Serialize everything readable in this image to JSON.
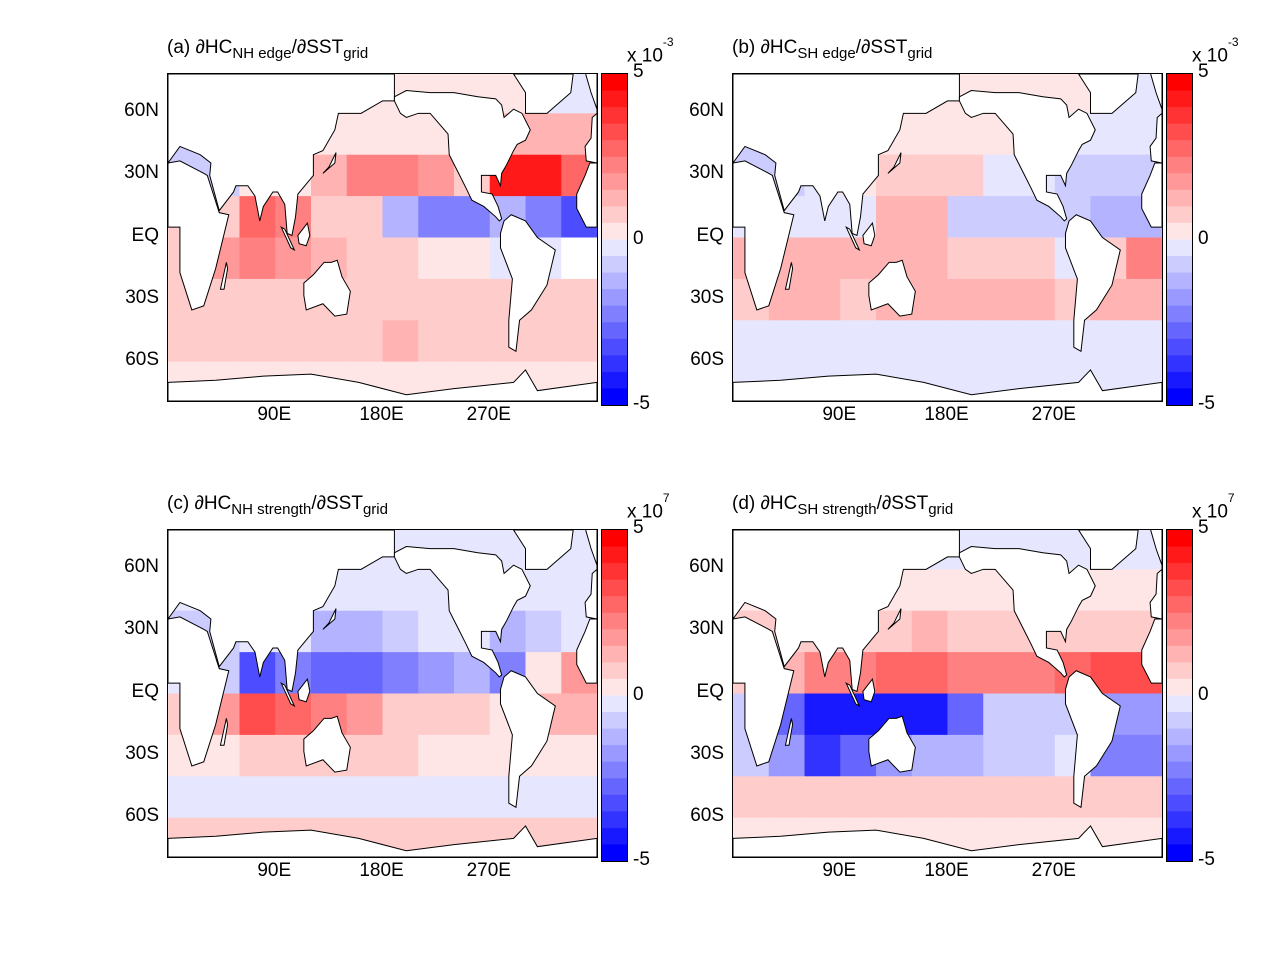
{
  "chart_data": [
    {
      "type": "heatmap",
      "panel_label": "(a)",
      "title_main": "∂HC",
      "title_sub": "NH edge",
      "title_den": "/∂SST",
      "title_den_sub": "grid",
      "colorbar": {
        "min": -5,
        "max": 5,
        "mid": 0,
        "min_label": "-5",
        "mid_label": "0",
        "max_label": "5",
        "multiplier_base": "x 10",
        "multiplier_exp": "-3"
      },
      "lat_bins": [
        70,
        50,
        30,
        10,
        -10,
        -30,
        -50,
        -70
      ],
      "lon_bins": [
        15,
        45,
        75,
        105,
        135,
        165,
        195,
        225,
        255,
        285,
        315,
        345
      ],
      "values": [
        [
          0.3,
          0.3,
          0.3,
          0.3,
          0.3,
          0.3,
          0.3,
          0.3,
          0.3,
          0.3,
          -0.5,
          -0.5
        ],
        [
          -1,
          0.3,
          0.3,
          0.3,
          0.5,
          0.5,
          0.5,
          0.5,
          0.3,
          1.2,
          1.5,
          1.2
        ],
        [
          -1,
          -1,
          0.5,
          0.5,
          1.5,
          2.5,
          2.5,
          2.0,
          1.0,
          4.5,
          4.5,
          3.0
        ],
        [
          1,
          1,
          3,
          2.5,
          1,
          1,
          -1.5,
          -2.5,
          -2.5,
          -1.5,
          -2.5,
          -3.5
        ],
        [
          1,
          2,
          2.5,
          2,
          1.5,
          0.8,
          0.8,
          0.5,
          0.5,
          -0.5,
          -0.5,
          0
        ],
        [
          0.8,
          0.8,
          0.8,
          0.8,
          0.8,
          1,
          1,
          1,
          0.8,
          0.8,
          1,
          0.8
        ],
        [
          0.8,
          0.8,
          0.8,
          0.8,
          0.8,
          0.8,
          1.2,
          0.8,
          0.8,
          0.8,
          0.8,
          0.8
        ],
        [
          0.5,
          0.5,
          0.5,
          0.5,
          0.5,
          0.5,
          0.5,
          0.5,
          0.5,
          0.5,
          0.5,
          0.5
        ]
      ]
    },
    {
      "type": "heatmap",
      "panel_label": "(b)",
      "title_main": "∂HC",
      "title_sub": "SH edge",
      "title_den": "/∂SST",
      "title_den_sub": "grid",
      "colorbar": {
        "min": -5,
        "max": 5,
        "mid": 0,
        "min_label": "-5",
        "mid_label": "0",
        "max_label": "5",
        "multiplier_base": "x 10",
        "multiplier_exp": "-3"
      },
      "lat_bins": [
        70,
        50,
        30,
        10,
        -10,
        -30,
        -50,
        -70
      ],
      "lon_bins": [
        15,
        45,
        75,
        105,
        135,
        165,
        195,
        225,
        255,
        285,
        315,
        345
      ],
      "values": [
        [
          0.3,
          0.3,
          0.3,
          0.3,
          0.3,
          0.3,
          0.3,
          0.3,
          0.3,
          0.3,
          -0.5,
          -0.5
        ],
        [
          -1,
          0.3,
          0.3,
          0.3,
          0.5,
          0.5,
          0.5,
          0.5,
          0.3,
          -0.5,
          -0.5,
          -0.5
        ],
        [
          -1,
          -1,
          -0.5,
          0.3,
          0.8,
          1.0,
          1.0,
          -0.5,
          -0.5,
          -1,
          -1,
          -1
        ],
        [
          -0.5,
          -0.5,
          -0.5,
          -0.5,
          1.5,
          1.5,
          -0.8,
          -0.8,
          -0.8,
          -1.0,
          -1.5,
          -1.5
        ],
        [
          1.2,
          1.5,
          1.5,
          1.2,
          1.5,
          1.5,
          1.0,
          0.8,
          0.8,
          -0.5,
          1.0,
          2.5
        ],
        [
          1.0,
          1.2,
          1.2,
          1.0,
          1.2,
          1.2,
          1.2,
          1.5,
          1.2,
          0.8,
          1.2,
          1.5
        ],
        [
          -0.5,
          -0.5,
          -0.5,
          -0.5,
          -0.5,
          -0.5,
          -0.5,
          -0.5,
          -0.5,
          -0.5,
          -0.5,
          -0.5
        ],
        [
          -0.5,
          -0.5,
          -0.5,
          -0.5,
          -0.5,
          -0.5,
          -0.5,
          -0.5,
          -0.5,
          -0.5,
          -0.5,
          -0.5
        ]
      ]
    },
    {
      "type": "heatmap",
      "panel_label": "(c)",
      "title_main": "∂HC",
      "title_sub": "NH strength",
      "title_den": "/∂SST",
      "title_den_sub": "grid",
      "colorbar": {
        "min": -5,
        "max": 5,
        "mid": 0,
        "min_label": "-5",
        "mid_label": "0",
        "max_label": "5",
        "multiplier_base": "x 10",
        "multiplier_exp": "7"
      },
      "lat_bins": [
        70,
        50,
        30,
        10,
        -10,
        -30,
        -50,
        -70
      ],
      "lon_bins": [
        15,
        45,
        75,
        105,
        135,
        165,
        195,
        225,
        255,
        285,
        315,
        345
      ],
      "values": [
        [
          -0.3,
          -0.3,
          -0.3,
          -0.3,
          -0.3,
          -0.3,
          -0.3,
          -0.3,
          -0.3,
          -0.3,
          -0.3,
          -0.3
        ],
        [
          -0.5,
          -0.5,
          -0.5,
          -0.5,
          -0.5,
          -0.5,
          -0.5,
          -0.5,
          -0.5,
          -0.5,
          -0.5,
          -0.5
        ],
        [
          -1,
          -1,
          -0.5,
          -0.5,
          -1.5,
          -1.5,
          -1.0,
          -0.5,
          -0.5,
          -1.5,
          -1.0,
          -0.5
        ],
        [
          -0.5,
          -1,
          -3.5,
          -2.5,
          -3,
          -3,
          -2.5,
          -2.0,
          -1.5,
          -2.5,
          0.5,
          2
        ],
        [
          1,
          2,
          3.5,
          3,
          2.5,
          2,
          1.0,
          0.8,
          0.8,
          0.5,
          1.5,
          1.5
        ],
        [
          0.5,
          0.5,
          0.8,
          0.8,
          0.8,
          1.0,
          0.8,
          0.5,
          0.5,
          0.5,
          0.5,
          0.5
        ],
        [
          -0.5,
          -0.5,
          -0.5,
          -0.5,
          -0.5,
          -0.5,
          -0.5,
          -0.5,
          -0.5,
          -0.5,
          -0.5,
          -0.5
        ],
        [
          0.8,
          0.8,
          0.8,
          0.8,
          0.8,
          0.8,
          0.8,
          0.8,
          0.8,
          0.8,
          0.8,
          0.8
        ]
      ]
    },
    {
      "type": "heatmap",
      "panel_label": "(d)",
      "title_main": "∂HC",
      "title_sub": "SH strength",
      "title_den": "/∂SST",
      "title_den_sub": "grid",
      "colorbar": {
        "min": -5,
        "max": 5,
        "mid": 0,
        "min_label": "-5",
        "mid_label": "0",
        "max_label": "5",
        "multiplier_base": "x 10",
        "multiplier_exp": "7"
      },
      "lat_bins": [
        70,
        50,
        30,
        10,
        -10,
        -30,
        -50,
        -70
      ],
      "lon_bins": [
        15,
        45,
        75,
        105,
        135,
        165,
        195,
        225,
        255,
        285,
        315,
        345
      ],
      "values": [
        [
          -0.3,
          -0.3,
          -0.3,
          -0.3,
          -0.3,
          -0.3,
          -0.3,
          -0.3,
          -0.3,
          -0.3,
          -0.3,
          -0.3
        ],
        [
          0.5,
          0.5,
          0.5,
          0.5,
          0.5,
          0.5,
          0.5,
          0.5,
          0.5,
          0.5,
          0.5,
          0.5
        ],
        [
          0.8,
          1.0,
          0.8,
          0.8,
          1.0,
          1.2,
          1.0,
          0.8,
          0.8,
          1.0,
          1.0,
          1.0
        ],
        [
          1,
          1.5,
          2.5,
          2.5,
          3,
          3,
          2.5,
          2.5,
          2.5,
          3,
          3.5,
          3.5
        ],
        [
          -1,
          -3,
          -4.5,
          -4.5,
          -4.5,
          -4.5,
          -3,
          -1,
          -1,
          -1,
          -2,
          -2
        ],
        [
          -1,
          -2,
          -4,
          -3,
          -2,
          -1.5,
          -1.5,
          -1,
          -0.8,
          -0.5,
          -2.5,
          -2.5
        ],
        [
          0.6,
          0.6,
          0.6,
          0.6,
          0.6,
          0.6,
          0.6,
          0.6,
          0.6,
          0.6,
          0.6,
          0.6
        ],
        [
          0.5,
          0.5,
          0.5,
          0.5,
          0.5,
          0.5,
          0.5,
          0.5,
          0.5,
          0.5,
          0.5,
          0.5
        ]
      ]
    }
  ],
  "axes": {
    "lat_range": [
      -79,
      79
    ],
    "lon_range": [
      0,
      360
    ],
    "yticks": [
      {
        "lat": 60,
        "label": "60N"
      },
      {
        "lat": 30,
        "label": "30N"
      },
      {
        "lat": 0,
        "label": "EQ"
      },
      {
        "lat": -30,
        "label": "30S"
      },
      {
        "lat": -60,
        "label": "60S"
      }
    ],
    "xticks": [
      {
        "lon": 90,
        "label": "90E"
      },
      {
        "lon": 180,
        "label": "180E"
      },
      {
        "lon": 270,
        "label": "270E"
      }
    ]
  },
  "colormap": {
    "negative": "#0000ff",
    "zero": "#ffffff",
    "positive": "#ff0000",
    "levels": 20
  }
}
